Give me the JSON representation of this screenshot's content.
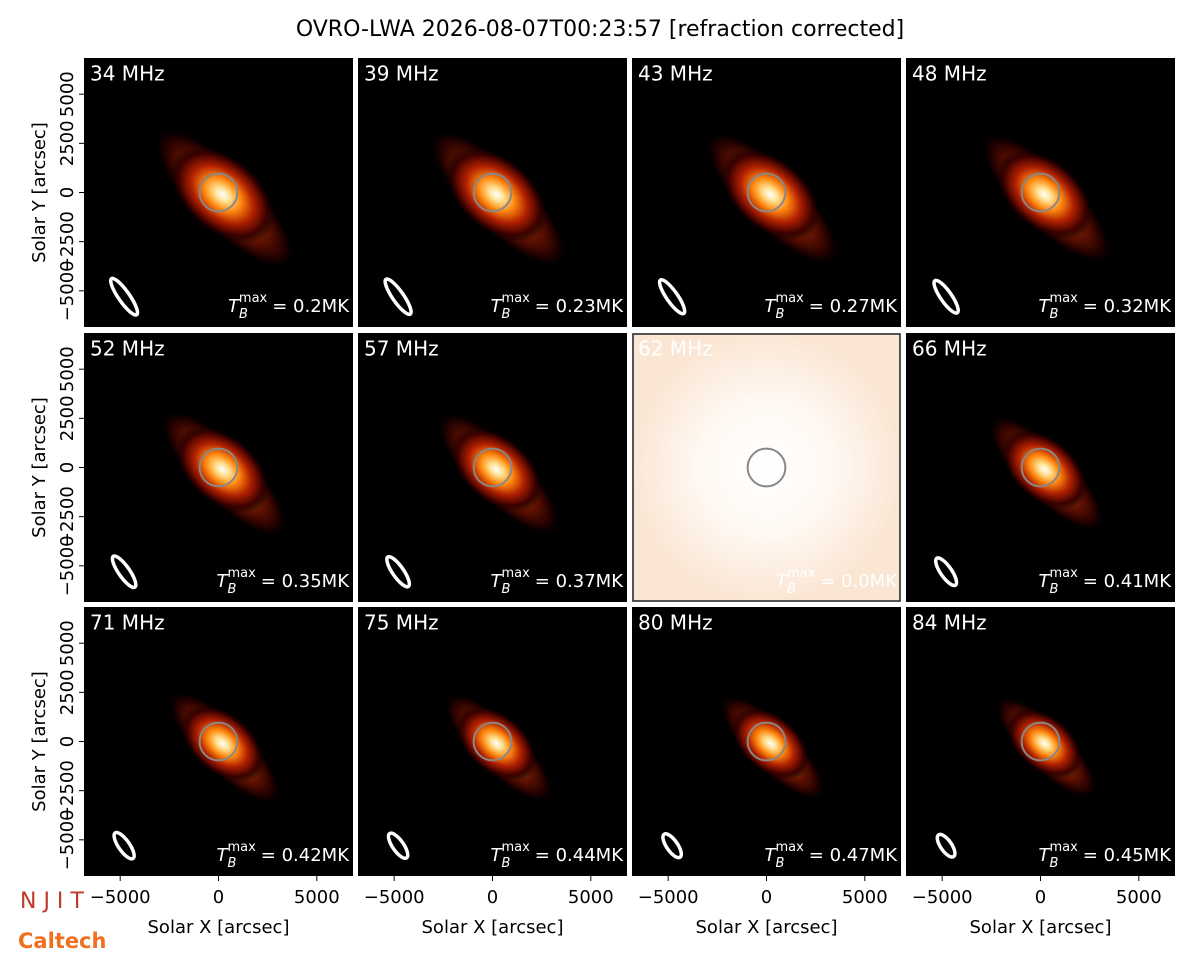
{
  "suptitle": "OVRO-LWA 2026-08-07T00:23:57 [refraction corrected]",
  "logos": [
    "N J I T",
    "Caltech"
  ],
  "chart_data": [
    {
      "type": "image",
      "title": "34 MHz",
      "annotation": [
        "T",
        "B",
        "max",
        "= 0.2MK"
      ],
      "background": "#000000",
      "xlim": [
        -6840,
        6840
      ],
      "ylim": [
        -6840,
        6840
      ],
      "ylabel": "Solar Y [arcsec]",
      "yticks": [
        {
          "value": -5000,
          "label": "−5000"
        },
        {
          "value": -2500,
          "label": "−2500"
        },
        0,
        2500,
        5000
      ]
    },
    {
      "type": "image",
      "title": "39 MHz",
      "annotation": [
        "T",
        "B",
        "max",
        "= 0.23MK"
      ],
      "background": "#000000",
      "xlim": [
        -6840,
        6840
      ],
      "ylim": [
        -6840,
        6840
      ]
    },
    {
      "type": "image",
      "title": "43 MHz",
      "annotation": [
        "T",
        "B",
        "max",
        "= 0.27MK"
      ],
      "background": "#000000",
      "xlim": [
        -6840,
        6840
      ],
      "ylim": [
        -6840,
        6840
      ]
    },
    {
      "type": "image",
      "title": "48 MHz",
      "annotation": [
        "T",
        "B",
        "max",
        "= 0.32MK"
      ],
      "background": "#000000",
      "xlim": [
        -6840,
        6840
      ],
      "ylim": [
        -6840,
        6840
      ]
    },
    {
      "type": "image",
      "title": "52 MHz",
      "annotation": [
        "T",
        "B",
        "max",
        "= 0.35MK"
      ],
      "background": "#000000",
      "xlim": [
        -6840,
        6840
      ],
      "ylim": [
        -6840,
        6840
      ],
      "ylabel": "Solar Y [arcsec]",
      "yticks": [
        {
          "value": -5000,
          "label": "−5000"
        },
        {
          "value": -2500,
          "label": "−2500"
        },
        0,
        2500,
        5000
      ]
    },
    {
      "type": "image",
      "title": "57 MHz",
      "annotation": [
        "T",
        "B",
        "max",
        "= 0.37MK"
      ],
      "background": "#000000",
      "xlim": [
        -6840,
        6840
      ],
      "ylim": [
        -6840,
        6840
      ]
    },
    {
      "type": "image",
      "title": "62 MHz",
      "annotation": [
        "T",
        "B",
        "max",
        "= 0.0MK"
      ],
      "background": "#fcece0",
      "xlim": [
        -6840,
        6840
      ],
      "ylim": [
        -6840,
        6840
      ]
    },
    {
      "type": "image",
      "title": "66 MHz",
      "annotation": [
        "T",
        "B",
        "max",
        "= 0.41MK"
      ],
      "background": "#000000",
      "xlim": [
        -6840,
        6840
      ],
      "ylim": [
        -6840,
        6840
      ]
    },
    {
      "type": "image",
      "title": "71 MHz",
      "annotation": [
        "T",
        "B",
        "max",
        "= 0.42MK"
      ],
      "background": "#000000",
      "xlim": [
        -6840,
        6840
      ],
      "ylim": [
        -6840,
        6840
      ],
      "ylabel": "Solar Y [arcsec]",
      "yticks": [
        {
          "value": -5000,
          "label": "−5000"
        },
        {
          "value": -2500,
          "label": "−2500"
        },
        0,
        2500,
        5000
      ],
      "xlabel": "Solar X [arcsec]",
      "xticks": [
        {
          "value": -5000,
          "label": "−5000"
        },
        0,
        5000
      ]
    },
    {
      "type": "image",
      "title": "75 MHz",
      "annotation": [
        "T",
        "B",
        "max",
        "= 0.44MK"
      ],
      "background": "#000000",
      "xlim": [
        -6840,
        6840
      ],
      "ylim": [
        -6840,
        6840
      ],
      "xlabel": "Solar X [arcsec]",
      "xticks": [
        {
          "value": -5000,
          "label": "−5000"
        },
        0,
        5000
      ]
    },
    {
      "type": "image",
      "title": "80 MHz",
      "annotation": [
        "T",
        "B",
        "max",
        "= 0.47MK"
      ],
      "background": "#000000",
      "xlim": [
        -6840,
        6840
      ],
      "ylim": [
        -6840,
        6840
      ],
      "xlabel": "Solar X [arcsec]",
      "xticks": [
        {
          "value": -5000,
          "label": "−5000"
        },
        0,
        5000
      ]
    },
    {
      "type": "image",
      "title": "84 MHz",
      "annotation": [
        "T",
        "B",
        "max",
        "= 0.45MK"
      ],
      "background": "#000000",
      "xlim": [
        -6840,
        6840
      ],
      "ylim": [
        -6840,
        6840
      ],
      "xlabel": "Solar X [arcsec]",
      "xticks": [
        {
          "value": -5000,
          "label": "−5000"
        },
        0,
        5000
      ]
    }
  ]
}
